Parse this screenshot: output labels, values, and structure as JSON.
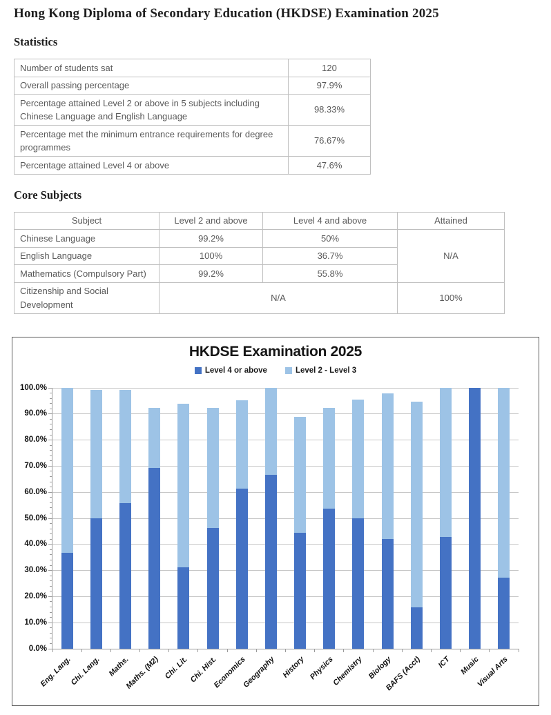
{
  "page_title": "Hong Kong Diploma of Secondary Education (HKDSE) Examination 2025",
  "sections": {
    "statistics": {
      "heading": "Statistics",
      "rows": [
        {
          "label": "Number of students sat",
          "value": "120"
        },
        {
          "label": "Overall passing percentage",
          "value": "97.9%"
        },
        {
          "label": "Percentage attained Level 2 or above in 5 subjects including Chinese Language and English Language",
          "value": "98.33%"
        },
        {
          "label": "Percentage met the minimum entrance requirements for degree programmes",
          "value": "76.67%"
        },
        {
          "label": "Percentage attained Level 4 or above",
          "value": "47.6%"
        }
      ]
    },
    "core_subjects": {
      "heading": "Core Subjects",
      "columns": [
        "Subject",
        "Level 2 and above",
        "Level 4 and above",
        "Attained"
      ],
      "rows": [
        {
          "subject": "Chinese Language",
          "level2": "99.2%",
          "level4": "50%"
        },
        {
          "subject": "English Language",
          "level2": "100%",
          "level4": "36.7%"
        },
        {
          "subject": "Mathematics (Compulsory Part)",
          "level2": "99.2%",
          "level4": "55.8%"
        }
      ],
      "attained_merged": "N/A",
      "csd_row": {
        "subject": "Citizenship and Social Development",
        "merged_value": "N/A",
        "attained": "100%"
      }
    }
  },
  "chart_data": {
    "type": "bar",
    "stacked": true,
    "title": "HKDSE Examination 2025",
    "categories": [
      "Eng. Lang.",
      "Chi. Lang.",
      "Maths.",
      "Maths. (M2)",
      "Chi. Lit.",
      "Chi. Hist.",
      "Economics",
      "Geography",
      "History",
      "Physics",
      "Chemistry",
      "Biology",
      "BAFS (Acct)",
      "ICT",
      "Music",
      "Visual Arts"
    ],
    "series": [
      {
        "name": "Level 4 or above",
        "color": "#4472C4",
        "values": [
          36.7,
          50.0,
          55.8,
          69.2,
          31.3,
          46.2,
          61.5,
          66.7,
          44.4,
          53.8,
          50.0,
          42.1,
          15.8,
          42.9,
          100.0,
          27.3
        ]
      },
      {
        "name": "Level 2 - Level 3",
        "color": "#9DC3E6",
        "values": [
          63.3,
          49.2,
          43.4,
          23.1,
          62.5,
          46.1,
          33.7,
          33.3,
          44.5,
          38.5,
          45.5,
          55.9,
          78.9,
          57.1,
          0.0,
          72.7
        ]
      }
    ],
    "stack_totals_level2_or_above": [
      100.0,
      99.2,
      99.2,
      92.3,
      93.8,
      92.3,
      95.2,
      100.0,
      88.9,
      92.3,
      95.5,
      98.0,
      94.7,
      100.0,
      100.0,
      100.0
    ],
    "xlabel": "",
    "ylabel": "",
    "ylim": [
      0,
      100
    ],
    "y_major_step": 10,
    "y_minor_step": 2,
    "y_tick_labels": [
      "0.0%",
      "10.0%",
      "20.0%",
      "30.0%",
      "40.0%",
      "50.0%",
      "60.0%",
      "70.0%",
      "80.0%",
      "90.0%",
      "100.0%"
    ],
    "legend_position": "top",
    "grid": true,
    "gridline_color": "#c6c6c6",
    "axis_color": "#9a9a9a"
  }
}
